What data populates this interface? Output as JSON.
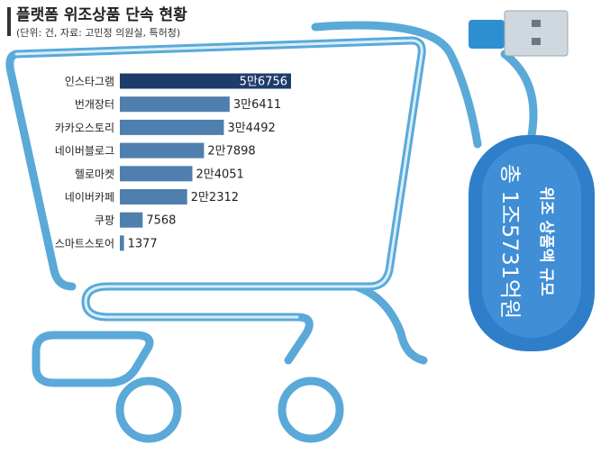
{
  "chart_data": {
    "type": "bar",
    "orientation": "horizontal",
    "title": "플랫폼 위조상품 단속 현황",
    "subtitle": "(단위: 건, 자료: 고민정 의원실, 특허청)",
    "categories": [
      "인스타그램",
      "번개장터",
      "카카오스토리",
      "네이버블로그",
      "헬로마켓",
      "네이버카페",
      "쿠팡",
      "스마트스토어"
    ],
    "values": [
      56756,
      36411,
      34492,
      27898,
      24051,
      22312,
      7568,
      1377
    ],
    "value_labels": [
      "5만6756",
      "3만6411",
      "3만4492",
      "2만7898",
      "2만4051",
      "2만2312",
      "7568",
      "1377"
    ],
    "colors": [
      "#1d3c6b",
      "#4f7fae",
      "#4f7fae",
      "#4f7fae",
      "#4f7fae",
      "#4f7fae",
      "#4f7fae",
      "#4f7fae"
    ],
    "annotations": [
      "위조 상품액 규모",
      "총 1조5731억원"
    ]
  }
}
